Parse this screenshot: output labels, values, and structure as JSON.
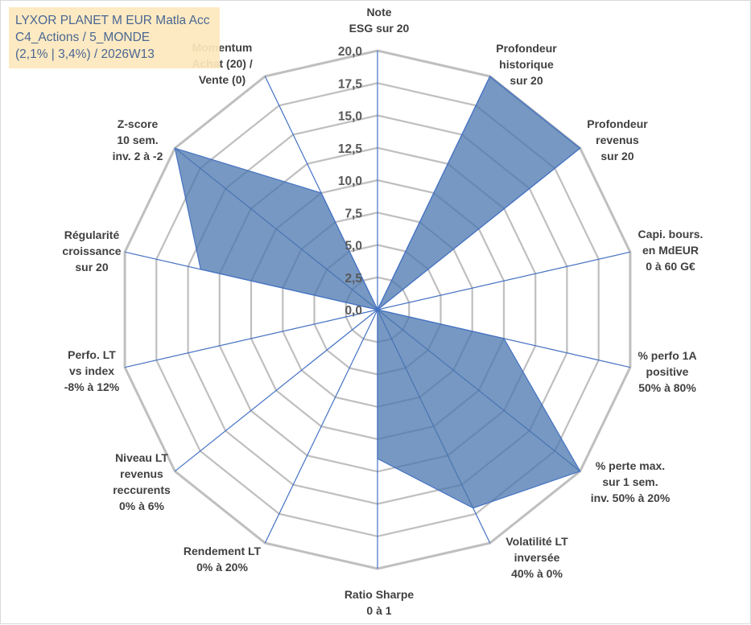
{
  "title_lines": [
    "LYXOR PLANET M EUR Matla Acc",
    "C4_Actions / 5_MONDE",
    "(2,1% | 3,4%) / 2026W13"
  ],
  "colors": {
    "fill": "#4a76ad",
    "radial_axis": "#4472c4",
    "grid": "#bfbfbf",
    "title_box": "#fde9bd",
    "title_text": "#3b5a8a"
  },
  "chart_data": {
    "type": "radar",
    "title": "",
    "rmin": 0,
    "rmax": 20,
    "ticks": [
      "0,0",
      "2,5",
      "5,0",
      "7,5",
      "10,0",
      "12,5",
      "15,0",
      "17,5",
      "20,0"
    ],
    "tick_values": [
      0,
      2.5,
      5,
      7.5,
      10,
      12.5,
      15,
      17.5,
      20
    ],
    "grid": true,
    "axes": [
      {
        "label": [
          "Note",
          "ESG sur 20"
        ],
        "value": 0
      },
      {
        "label": [
          "Profondeur",
          "historique",
          "sur 20"
        ],
        "value": 20
      },
      {
        "label": [
          "Profondeur",
          "revenus",
          "sur 20"
        ],
        "value": 20
      },
      {
        "label": [
          "Capi. bours.",
          "en MdEUR",
          "0 à 60 G€"
        ],
        "value": 0
      },
      {
        "label": [
          "% perfo 1A",
          "positive",
          "50% à 80%"
        ],
        "value": 10
      },
      {
        "label": [
          "% perte max.",
          "sur 1 sem.",
          "inv. 50% à 20%"
        ],
        "value": 20
      },
      {
        "label": [
          "Volatilité LT",
          "inversée",
          "40% à 0%"
        ],
        "value": 17
      },
      {
        "label": [
          "Ratio Sharpe",
          "0 à 1"
        ],
        "value": 11.5
      },
      {
        "label": [
          "Rendement LT",
          "0% à 20%"
        ],
        "value": 0
      },
      {
        "label": [
          "Niveau LT",
          "revenus",
          "reccurents",
          "0% à 6%"
        ],
        "value": 0
      },
      {
        "label": [
          "Perfo. LT",
          "vs index",
          "-8% à 12%"
        ],
        "value": 0
      },
      {
        "label": [
          "Régularité",
          "croissance",
          "sur 20"
        ],
        "value": 14
      },
      {
        "label": [
          "Z-score",
          "10 sem.",
          "inv. 2 à -2"
        ],
        "value": 20
      },
      {
        "label": [
          "Momentum",
          "Achat (20) /",
          "Vente (0)"
        ],
        "value": 10
      }
    ]
  }
}
